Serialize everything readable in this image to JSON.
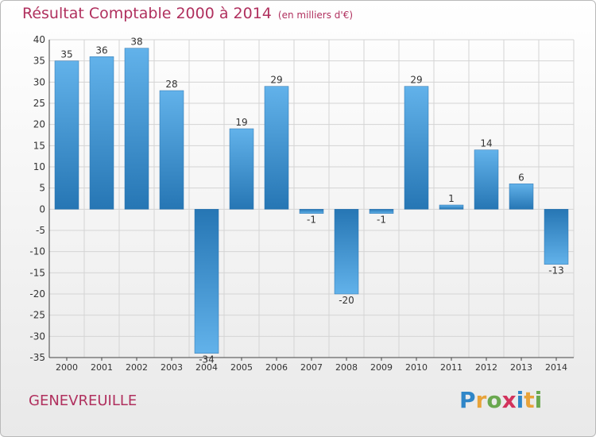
{
  "header": {
    "title": "Résultat Comptable 2000 à 2014",
    "subtitle": "(en milliers d'€)"
  },
  "commune": "GENEVREUILLE",
  "logo": {
    "text": "Proxiti",
    "letters": [
      "P",
      "r",
      "o",
      "x",
      "i",
      "t",
      "i"
    ],
    "colors": [
      "#2f86c8",
      "#e8a33a",
      "#6aa84f",
      "#d2335c",
      "#2f86c8",
      "#e8a33a",
      "#6aa84f"
    ]
  },
  "colors": {
    "bar_dark": "#2676b4",
    "bar_light": "#62b2ea",
    "title": "#b0305e"
  },
  "chart_data": {
    "type": "bar",
    "categories": [
      "2000",
      "2001",
      "2002",
      "2003",
      "2004",
      "2005",
      "2006",
      "2007",
      "2008",
      "2009",
      "2010",
      "2011",
      "2012",
      "2013",
      "2014"
    ],
    "values": [
      35,
      36,
      38,
      28,
      -34,
      19,
      29,
      -1,
      -20,
      -1,
      29,
      1,
      14,
      6,
      -13
    ],
    "ylim": [
      -35,
      40
    ],
    "yticks": [
      40,
      35,
      30,
      25,
      20,
      15,
      10,
      5,
      0,
      -5,
      -10,
      -15,
      -20,
      -25,
      -30,
      -35
    ],
    "grid": true
  }
}
